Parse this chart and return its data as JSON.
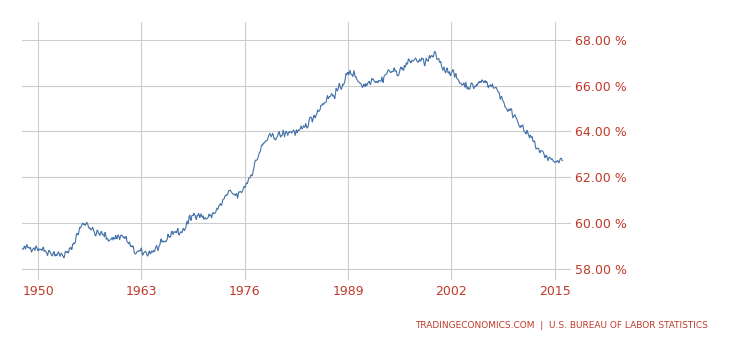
{
  "source_text": "TRADINGECONOMICS.COM  |  U.S. BUREAU OF LABOR STATISTICS",
  "x_ticks": [
    1950,
    1963,
    1976,
    1989,
    2002,
    2015
  ],
  "y_ticks": [
    58.0,
    60.0,
    62.0,
    64.0,
    66.0,
    68.0
  ],
  "y_tick_labels": [
    "58.00 %",
    "60.00 %",
    "62.00 %",
    "64.00 %",
    "66.00 %",
    "68.00 %"
  ],
  "ylim": [
    57.5,
    68.8
  ],
  "xlim": [
    1948,
    2017
  ],
  "line_color": "#4472a8",
  "bg_color": "#ffffff",
  "grid_color": "#cccccc",
  "source_color": "#c0392b",
  "tick_color": "#c0392b",
  "key_points": [
    [
      1948,
      58.8
    ],
    [
      1950,
      58.9
    ],
    [
      1953,
      58.6
    ],
    [
      1954,
      58.8
    ],
    [
      1956,
      60.0
    ],
    [
      1957,
      59.6
    ],
    [
      1958,
      59.5
    ],
    [
      1959,
      59.3
    ],
    [
      1960,
      59.4
    ],
    [
      1961,
      59.3
    ],
    [
      1962,
      58.8
    ],
    [
      1963,
      58.7
    ],
    [
      1964,
      58.7
    ],
    [
      1965,
      58.9
    ],
    [
      1966,
      59.2
    ],
    [
      1967,
      59.6
    ],
    [
      1968,
      59.6
    ],
    [
      1969,
      60.1
    ],
    [
      1970,
      60.4
    ],
    [
      1971,
      60.2
    ],
    [
      1972,
      60.4
    ],
    [
      1973,
      60.8
    ],
    [
      1974,
      61.3
    ],
    [
      1975,
      61.2
    ],
    [
      1976,
      61.6
    ],
    [
      1977,
      62.3
    ],
    [
      1978,
      63.2
    ],
    [
      1979,
      63.7
    ],
    [
      1980,
      63.8
    ],
    [
      1981,
      63.9
    ],
    [
      1982,
      64.0
    ],
    [
      1983,
      64.0
    ],
    [
      1984,
      64.4
    ],
    [
      1985,
      64.8
    ],
    [
      1986,
      65.3
    ],
    [
      1987,
      65.6
    ],
    [
      1988,
      65.9
    ],
    [
      1989,
      66.5
    ],
    [
      1990,
      66.4
    ],
    [
      1991,
      66.0
    ],
    [
      1992,
      66.3
    ],
    [
      1993,
      66.2
    ],
    [
      1994,
      66.6
    ],
    [
      1995,
      66.6
    ],
    [
      1996,
      66.8
    ],
    [
      1997,
      67.1
    ],
    [
      1998,
      67.1
    ],
    [
      1999,
      67.1
    ],
    [
      2000,
      67.3
    ],
    [
      2001,
      66.8
    ],
    [
      2002,
      66.6
    ],
    [
      2003,
      66.2
    ],
    [
      2004,
      66.0
    ],
    [
      2005,
      66.0
    ],
    [
      2006,
      66.2
    ],
    [
      2007,
      66.0
    ],
    [
      2008,
      65.7
    ],
    [
      2009,
      65.0
    ],
    [
      2010,
      64.7
    ],
    [
      2011,
      64.1
    ],
    [
      2012,
      63.7
    ],
    [
      2013,
      63.2
    ],
    [
      2014,
      62.9
    ],
    [
      2015,
      62.7
    ],
    [
      2016,
      62.8
    ]
  ]
}
